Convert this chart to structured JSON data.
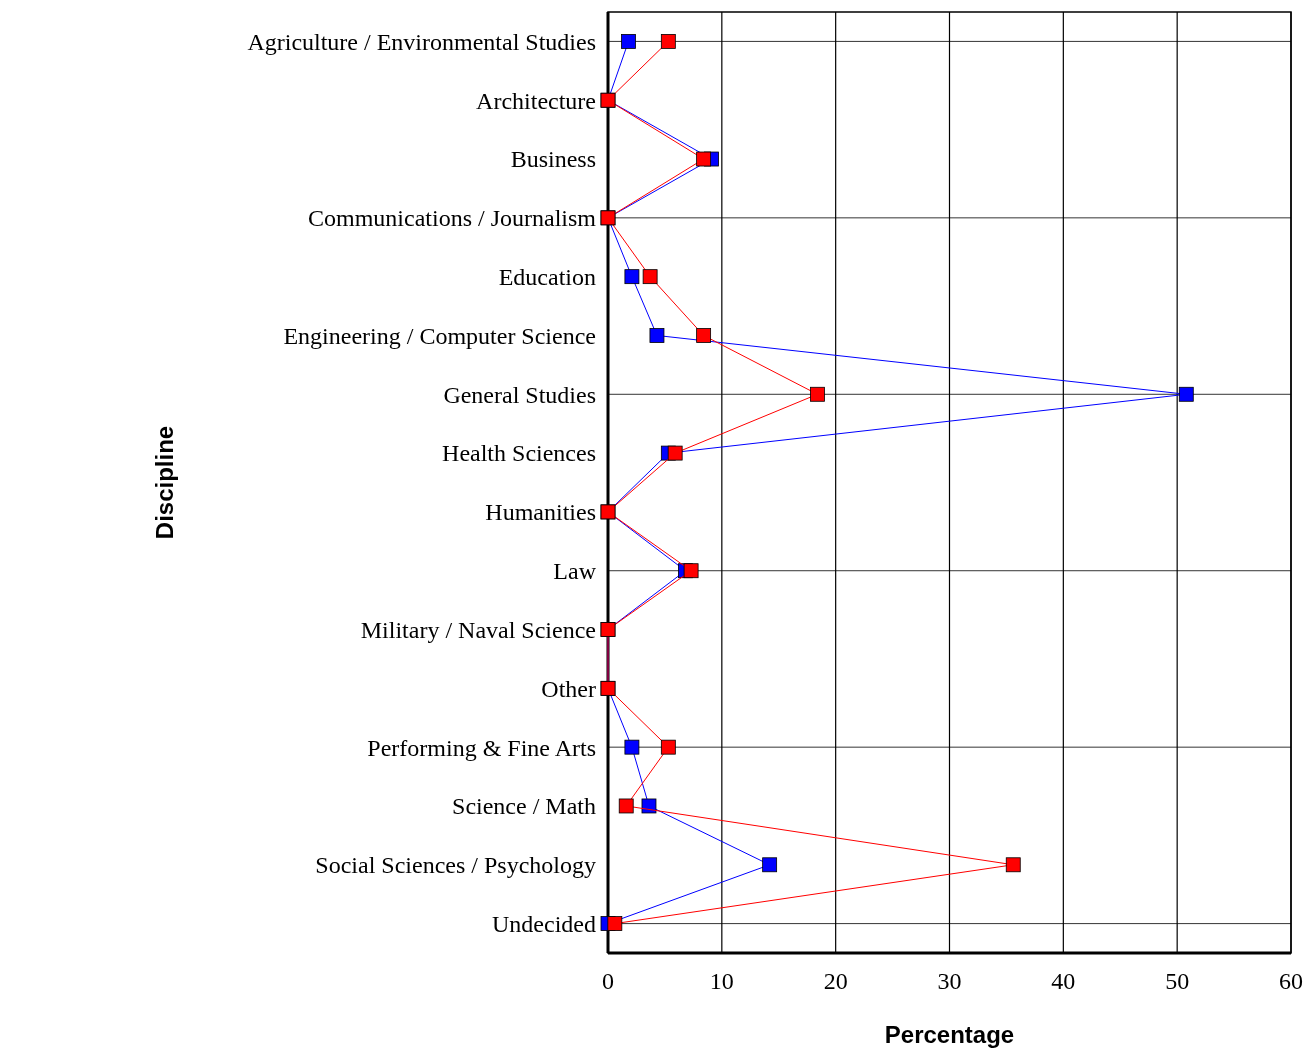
{
  "chart_data": {
    "type": "line",
    "orientation": "horizontal",
    "xlabel": "Percentage",
    "ylabel": "Discipline",
    "categories": [
      "Agriculture / Environmental Studies",
      "Architecture",
      "Business",
      "Communications / Journalism",
      "Education",
      "Engineering / Computer Science",
      "General Studies",
      "Health Sciences",
      "Humanities",
      "Law",
      "Military / Naval Science",
      "Other",
      "Performing & Fine Arts",
      "Science / Math",
      "Social Sciences / Psychology",
      "Undecided"
    ],
    "series": [
      {
        "color": "#0000ff",
        "values": [
          1.8,
          0,
          9.1,
          0,
          2.1,
          4.3,
          50.8,
          5.3,
          0,
          6.8,
          0,
          0,
          2.1,
          3.6,
          14.2,
          0
        ]
      },
      {
        "color": "#ff0000",
        "values": [
          5.3,
          0,
          8.4,
          0,
          3.7,
          8.4,
          18.4,
          5.9,
          0,
          7.3,
          0,
          0,
          5.3,
          1.6,
          35.6,
          0.6
        ]
      }
    ],
    "xlim": [
      0,
      60
    ],
    "xticks": [
      0,
      10,
      20,
      30,
      40,
      50,
      60
    ],
    "grid": true,
    "marker": "square",
    "line_style": "solid"
  }
}
